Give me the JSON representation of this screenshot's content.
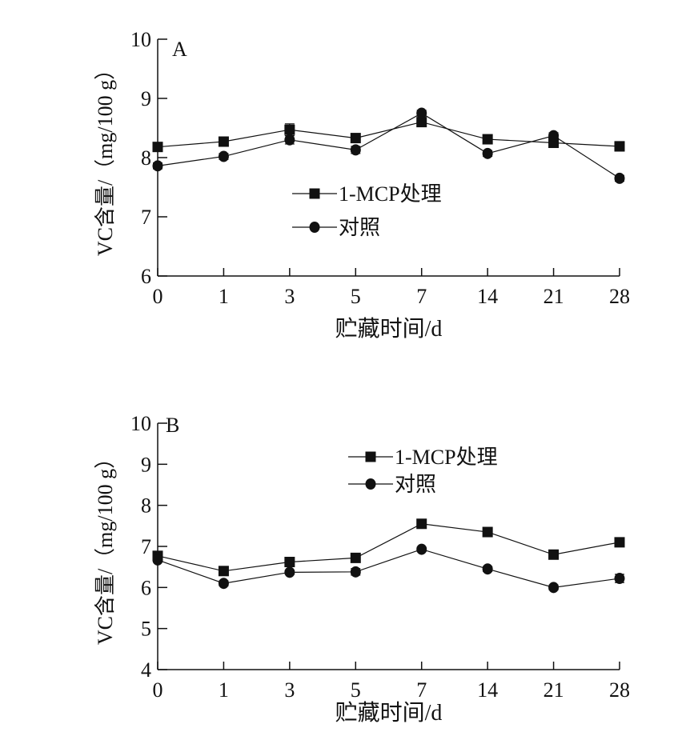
{
  "chart_data": [
    {
      "type": "line",
      "panel_label": "A",
      "xlabel": "贮藏时间/d",
      "ylabel": "VC含量/（mg/100 g）",
      "categories": [
        "0",
        "1",
        "3",
        "5",
        "7",
        "14",
        "21",
        "28"
      ],
      "ylim": [
        6,
        10
      ],
      "yticks": [
        "6",
        "7",
        "8",
        "9",
        "10"
      ],
      "legend_position": "center-left",
      "series": [
        {
          "name": "1-MCP处理",
          "marker": "square",
          "values": [
            8.18,
            8.27,
            8.47,
            8.33,
            8.6,
            8.31,
            8.25,
            8.19
          ],
          "errors": [
            0.05,
            0.06,
            0.1,
            0.05,
            0.05,
            0.05,
            0.08,
            0.08
          ]
        },
        {
          "name": "对照",
          "marker": "circle",
          "values": [
            7.86,
            8.02,
            8.3,
            8.13,
            8.75,
            8.07,
            8.37,
            7.65
          ],
          "errors": [
            0.05,
            0.05,
            0.07,
            0.06,
            0.05,
            0.05,
            0.05,
            0.05
          ]
        }
      ]
    },
    {
      "type": "line",
      "panel_label": "B",
      "xlabel": "贮藏时间/d",
      "ylabel": "VC含量/（mg/100 g）",
      "categories": [
        "0",
        "1",
        "3",
        "5",
        "7",
        "14",
        "21",
        "28"
      ],
      "ylim": [
        4,
        10
      ],
      "yticks": [
        "4",
        "5",
        "6",
        "7",
        "8",
        "9",
        "10"
      ],
      "legend_position": "top-center",
      "series": [
        {
          "name": "1-MCP处理",
          "marker": "square",
          "values": [
            6.77,
            6.4,
            6.62,
            6.72,
            7.55,
            7.35,
            6.8,
            7.1
          ],
          "errors": [
            0.08,
            0.1,
            0.05,
            0.07,
            0.05,
            0.05,
            0.06,
            0.06
          ]
        },
        {
          "name": "对照",
          "marker": "circle",
          "values": [
            6.67,
            6.1,
            6.37,
            6.38,
            6.93,
            6.45,
            6.0,
            6.22
          ],
          "errors": [
            0.05,
            0.06,
            0.05,
            0.08,
            0.05,
            0.06,
            0.06,
            0.1
          ]
        }
      ]
    }
  ]
}
